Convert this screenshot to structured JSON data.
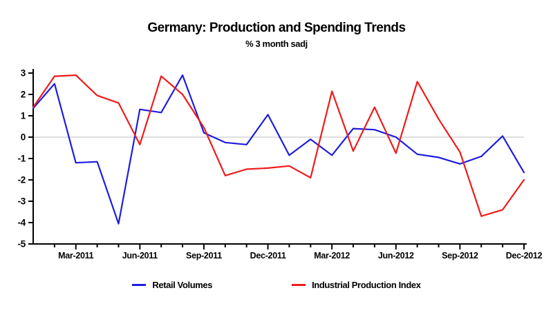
{
  "page": {
    "background": "#ffffff",
    "axis_color": "#000000",
    "zero_line_color": "#c9c9c9"
  },
  "chart_data": {
    "type": "line",
    "title": "Germany: Production and Spending Trends",
    "subtitle": "% 3 month sadj",
    "x": [
      "Jan-2011",
      "Feb-2011",
      "Mar-2011",
      "Apr-2011",
      "May-2011",
      "Jun-2011",
      "Jul-2011",
      "Aug-2011",
      "Sep-2011",
      "Oct-2011",
      "Nov-2011",
      "Dec-2011",
      "Jan-2012",
      "Feb-2012",
      "Mar-2012",
      "Apr-2012",
      "May-2012",
      "Jun-2012",
      "Jul-2012",
      "Aug-2012",
      "Sep-2012",
      "Oct-2012",
      "Nov-2012",
      "Dec-2012"
    ],
    "series": [
      {
        "name": "Retail Volumes",
        "color": "#1c1ce0",
        "values": [
          1.35,
          2.5,
          -1.2,
          -1.15,
          -4.05,
          1.3,
          1.15,
          2.9,
          0.2,
          -0.25,
          -0.35,
          1.05,
          -0.85,
          -0.1,
          -0.85,
          0.4,
          0.35,
          0.0,
          -0.8,
          -0.95,
          -1.25,
          -0.9,
          0.05,
          -1.65
        ]
      },
      {
        "name": "Industrial Production Index",
        "color": "#ee1a1a",
        "values": [
          1.4,
          2.85,
          2.9,
          1.95,
          1.6,
          -0.35,
          2.85,
          2.0,
          0.45,
          -1.8,
          -1.5,
          -1.45,
          -1.35,
          -1.9,
          2.15,
          -0.65,
          1.4,
          -0.75,
          2.6,
          0.85,
          -0.7,
          -3.7,
          -3.4,
          -2.0
        ]
      }
    ],
    "ylim": [
      -5,
      3
    ],
    "yticks": [
      3,
      2,
      1,
      0,
      -1,
      -2,
      -3,
      -4,
      -5
    ],
    "xtick_labels": [
      "Mar-2011",
      "Jun-2011",
      "Sep-2011",
      "Dec-2011",
      "Mar-2012",
      "Jun-2012",
      "Sep-2012",
      "Dec-2012"
    ],
    "grid": "horizontal zero-line only",
    "legend_position": "bottom-center"
  }
}
